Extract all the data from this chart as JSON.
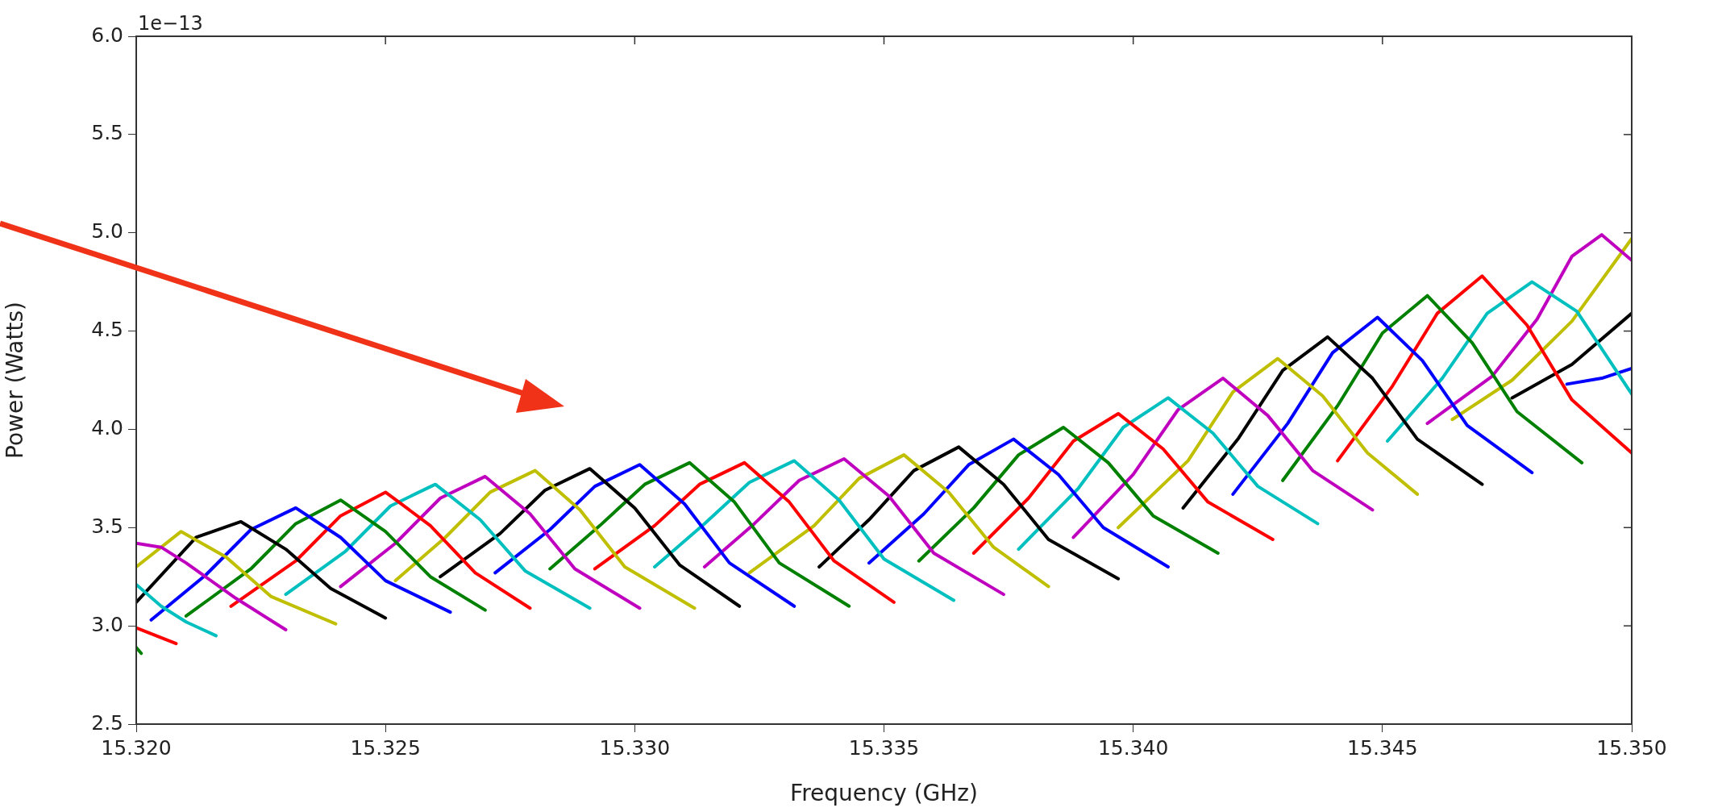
{
  "chart_data": {
    "type": "line",
    "xlabel": "Frequency (GHz)",
    "ylabel": "Power (Watts)",
    "annotations": [
      "1e−13"
    ],
    "marker": "none",
    "line_style": "solid",
    "grid": false,
    "legend": false,
    "xlim": [
      15.32,
      15.35
    ],
    "xticks": [
      {
        "value": 15.32,
        "label": "15.320"
      },
      {
        "value": 15.325,
        "label": "15.325"
      },
      {
        "value": 15.33,
        "label": "15.330"
      },
      {
        "value": 15.335,
        "label": "15.335"
      },
      {
        "value": 15.34,
        "label": "15.340"
      },
      {
        "value": 15.345,
        "label": "15.345"
      },
      {
        "value": 15.35,
        "label": "15.350"
      }
    ],
    "ylim": [
      2.5,
      6
    ],
    "yticks": [
      2.5,
      {
        "value": 3,
        "label": "3.0"
      },
      3.5,
      {
        "value": 4,
        "label": "4.0"
      },
      4.5,
      {
        "value": 5,
        "label": "5.0"
      },
      5.5,
      {
        "value": 6,
        "label": "6.0"
      }
    ],
    "series": [
      {
        "color": "#008000",
        "x": [
          15.32,
          15.3201
        ],
        "values": [
          2.89,
          2.86
        ]
      },
      {
        "color": "#ff0000",
        "x": [
          15.32,
          15.3204,
          15.3208
        ],
        "values": [
          2.99,
          2.95,
          2.91
        ]
      },
      {
        "color": "#00bfbf",
        "x": [
          15.32,
          15.3205,
          15.321,
          15.3216
        ],
        "values": [
          3.21,
          3.1,
          3.02,
          2.95
        ]
      },
      {
        "color": "#bf00bf",
        "x": [
          15.32,
          15.3205,
          15.321,
          15.322,
          15.323
        ],
        "values": [
          3.42,
          3.4,
          3.32,
          3.14,
          2.98
        ]
      },
      {
        "color": "#bfbf00",
        "x": [
          15.32,
          15.3209,
          15.3218,
          15.3227,
          15.324
        ],
        "values": [
          3.3,
          3.48,
          3.35,
          3.15,
          3.01
        ]
      },
      {
        "color": "#000000",
        "x": [
          15.32,
          15.3212,
          15.3221,
          15.323,
          15.3239,
          15.325
        ],
        "values": [
          3.12,
          3.45,
          3.53,
          3.39,
          3.19,
          3.04
        ]
      },
      {
        "color": "#0000ff",
        "x": [
          15.3203,
          15.3214,
          15.3223,
          15.3232,
          15.3241,
          15.325,
          15.3263
        ],
        "values": [
          3.03,
          3.26,
          3.49,
          3.6,
          3.45,
          3.23,
          3.07
        ]
      },
      {
        "color": "#008000",
        "x": [
          15.321,
          15.3223,
          15.3232,
          15.3241,
          15.325,
          15.3259,
          15.327
        ],
        "values": [
          3.05,
          3.29,
          3.52,
          3.64,
          3.48,
          3.25,
          3.08
        ]
      },
      {
        "color": "#ff0000",
        "x": [
          15.3219,
          15.3232,
          15.3241,
          15.325,
          15.3259,
          15.3268,
          15.3279
        ],
        "values": [
          3.1,
          3.33,
          3.56,
          3.68,
          3.51,
          3.27,
          3.09
        ]
      },
      {
        "color": "#00bfbf",
        "x": [
          15.323,
          15.3242,
          15.3251,
          15.326,
          15.3269,
          15.3278,
          15.3291
        ],
        "values": [
          3.16,
          3.38,
          3.61,
          3.72,
          3.54,
          3.28,
          3.09
        ]
      },
      {
        "color": "#bf00bf",
        "x": [
          15.3241,
          15.3252,
          15.3261,
          15.327,
          15.3279,
          15.3288,
          15.3301
        ],
        "values": [
          3.2,
          3.42,
          3.65,
          3.76,
          3.57,
          3.29,
          3.09
        ]
      },
      {
        "color": "#bfbf00",
        "x": [
          15.3252,
          15.3262,
          15.3271,
          15.328,
          15.3289,
          15.3298,
          15.3312
        ],
        "values": [
          3.23,
          3.45,
          3.68,
          3.79,
          3.59,
          3.3,
          3.09
        ]
      },
      {
        "color": "#000000",
        "x": [
          15.3261,
          15.3273,
          15.3282,
          15.3291,
          15.33,
          15.3309,
          15.3321
        ],
        "values": [
          3.25,
          3.47,
          3.69,
          3.8,
          3.6,
          3.31,
          3.1
        ]
      },
      {
        "color": "#0000ff",
        "x": [
          15.3272,
          15.3283,
          15.3292,
          15.3301,
          15.331,
          15.3319,
          15.3332
        ],
        "values": [
          3.27,
          3.49,
          3.71,
          3.82,
          3.62,
          3.32,
          3.1
        ]
      },
      {
        "color": "#008000",
        "x": [
          15.3283,
          15.3293,
          15.3302,
          15.3311,
          15.332,
          15.3329,
          15.3343
        ],
        "values": [
          3.29,
          3.51,
          3.72,
          3.83,
          3.63,
          3.32,
          3.1
        ]
      },
      {
        "color": "#ff0000",
        "x": [
          15.3292,
          15.3304,
          15.3313,
          15.3322,
          15.3331,
          15.334,
          15.3352
        ],
        "values": [
          3.29,
          3.51,
          3.72,
          3.83,
          3.63,
          3.33,
          3.12
        ]
      },
      {
        "color": "#00bfbf",
        "x": [
          15.3304,
          15.3314,
          15.3323,
          15.3332,
          15.3341,
          15.335,
          15.3364
        ],
        "values": [
          3.3,
          3.52,
          3.73,
          3.84,
          3.64,
          3.34,
          3.13
        ]
      },
      {
        "color": "#bf00bf",
        "x": [
          15.3314,
          15.3324,
          15.3333,
          15.3342,
          15.3351,
          15.336,
          15.3374
        ],
        "values": [
          3.3,
          3.52,
          3.74,
          3.85,
          3.66,
          3.37,
          3.16
        ]
      },
      {
        "color": "#bfbf00",
        "x": [
          15.3323,
          15.3336,
          15.3345,
          15.3354,
          15.3363,
          15.3372,
          15.3383
        ],
        "values": [
          3.27,
          3.51,
          3.75,
          3.87,
          3.68,
          3.4,
          3.2
        ]
      },
      {
        "color": "#000000",
        "x": [
          15.3337,
          15.3347,
          15.3356,
          15.3365,
          15.3374,
          15.3383,
          15.3397
        ],
        "values": [
          3.3,
          3.54,
          3.79,
          3.91,
          3.72,
          3.44,
          3.24
        ]
      },
      {
        "color": "#0000ff",
        "x": [
          15.3347,
          15.3358,
          15.3367,
          15.3376,
          15.3385,
          15.3394,
          15.3407
        ],
        "values": [
          3.32,
          3.57,
          3.82,
          3.95,
          3.77,
          3.5,
          3.3
        ]
      },
      {
        "color": "#008000",
        "x": [
          15.3357,
          15.3368,
          15.3377,
          15.3386,
          15.3395,
          15.3404,
          15.3417
        ],
        "values": [
          3.33,
          3.6,
          3.87,
          4.01,
          3.83,
          3.56,
          3.37
        ]
      },
      {
        "color": "#ff0000",
        "x": [
          15.3368,
          15.3379,
          15.3388,
          15.3397,
          15.3406,
          15.3415,
          15.3428
        ],
        "values": [
          3.37,
          3.65,
          3.94,
          4.08,
          3.9,
          3.63,
          3.44
        ]
      },
      {
        "color": "#00bfbf",
        "x": [
          15.3377,
          15.3389,
          15.3398,
          15.3407,
          15.3416,
          15.3425,
          15.3437
        ],
        "values": [
          3.39,
          3.7,
          4.01,
          4.16,
          3.98,
          3.71,
          3.52
        ]
      },
      {
        "color": "#bf00bf",
        "x": [
          15.3388,
          15.34,
          15.3409,
          15.3418,
          15.3427,
          15.3436,
          15.3448
        ],
        "values": [
          3.45,
          3.77,
          4.1,
          4.26,
          4.07,
          3.79,
          3.59
        ]
      },
      {
        "color": "#bfbf00",
        "x": [
          15.3397,
          15.3411,
          15.342,
          15.3429,
          15.3438,
          15.3447,
          15.3457
        ],
        "values": [
          3.5,
          3.84,
          4.19,
          4.36,
          4.17,
          3.88,
          3.67
        ]
      },
      {
        "color": "#000000",
        "x": [
          15.341,
          15.3421,
          15.343,
          15.3439,
          15.3448,
          15.3457,
          15.347
        ],
        "values": [
          3.6,
          3.95,
          4.3,
          4.47,
          4.26,
          3.95,
          3.72
        ]
      },
      {
        "color": "#0000ff",
        "x": [
          15.342,
          15.3431,
          15.344,
          15.3449,
          15.3458,
          15.3467,
          15.348
        ],
        "values": [
          3.67,
          4.03,
          4.39,
          4.57,
          4.35,
          4.02,
          3.78
        ]
      },
      {
        "color": "#008000",
        "x": [
          15.343,
          15.3441,
          15.345,
          15.3459,
          15.3468,
          15.3477,
          15.349
        ],
        "values": [
          3.74,
          4.12,
          4.49,
          4.68,
          4.44,
          4.09,
          3.83
        ]
      },
      {
        "color": "#ff0000",
        "x": [
          15.3441,
          15.3452,
          15.3461,
          15.347,
          15.3479,
          15.3488,
          15.35
        ],
        "values": [
          3.84,
          4.22,
          4.59,
          4.78,
          4.53,
          4.15,
          3.88
        ]
      },
      {
        "color": "#00bfbf",
        "x": [
          15.3451,
          15.3462,
          15.3471,
          15.348,
          15.3489,
          15.35
        ],
        "values": [
          3.94,
          4.26,
          4.59,
          4.75,
          4.6,
          4.18
        ]
      },
      {
        "color": "#bf00bf",
        "x": [
          15.3459,
          15.3472,
          15.3481,
          15.3488,
          15.3494,
          15.35
        ],
        "values": [
          4.03,
          4.27,
          4.56,
          4.88,
          4.99,
          4.86
        ]
      },
      {
        "color": "#bfbf00",
        "x": [
          15.3464,
          15.3476,
          15.3488,
          15.35
        ],
        "values": [
          4.05,
          4.25,
          4.55,
          4.97
        ]
      },
      {
        "color": "#000000",
        "x": [
          15.3476,
          15.3488,
          15.35
        ],
        "values": [
          4.16,
          4.33,
          4.59
        ]
      },
      {
        "color": "#0000ff",
        "x": [
          15.3487,
          15.3494,
          15.35
        ],
        "values": [
          4.23,
          4.26,
          4.31
        ]
      }
    ]
  }
}
